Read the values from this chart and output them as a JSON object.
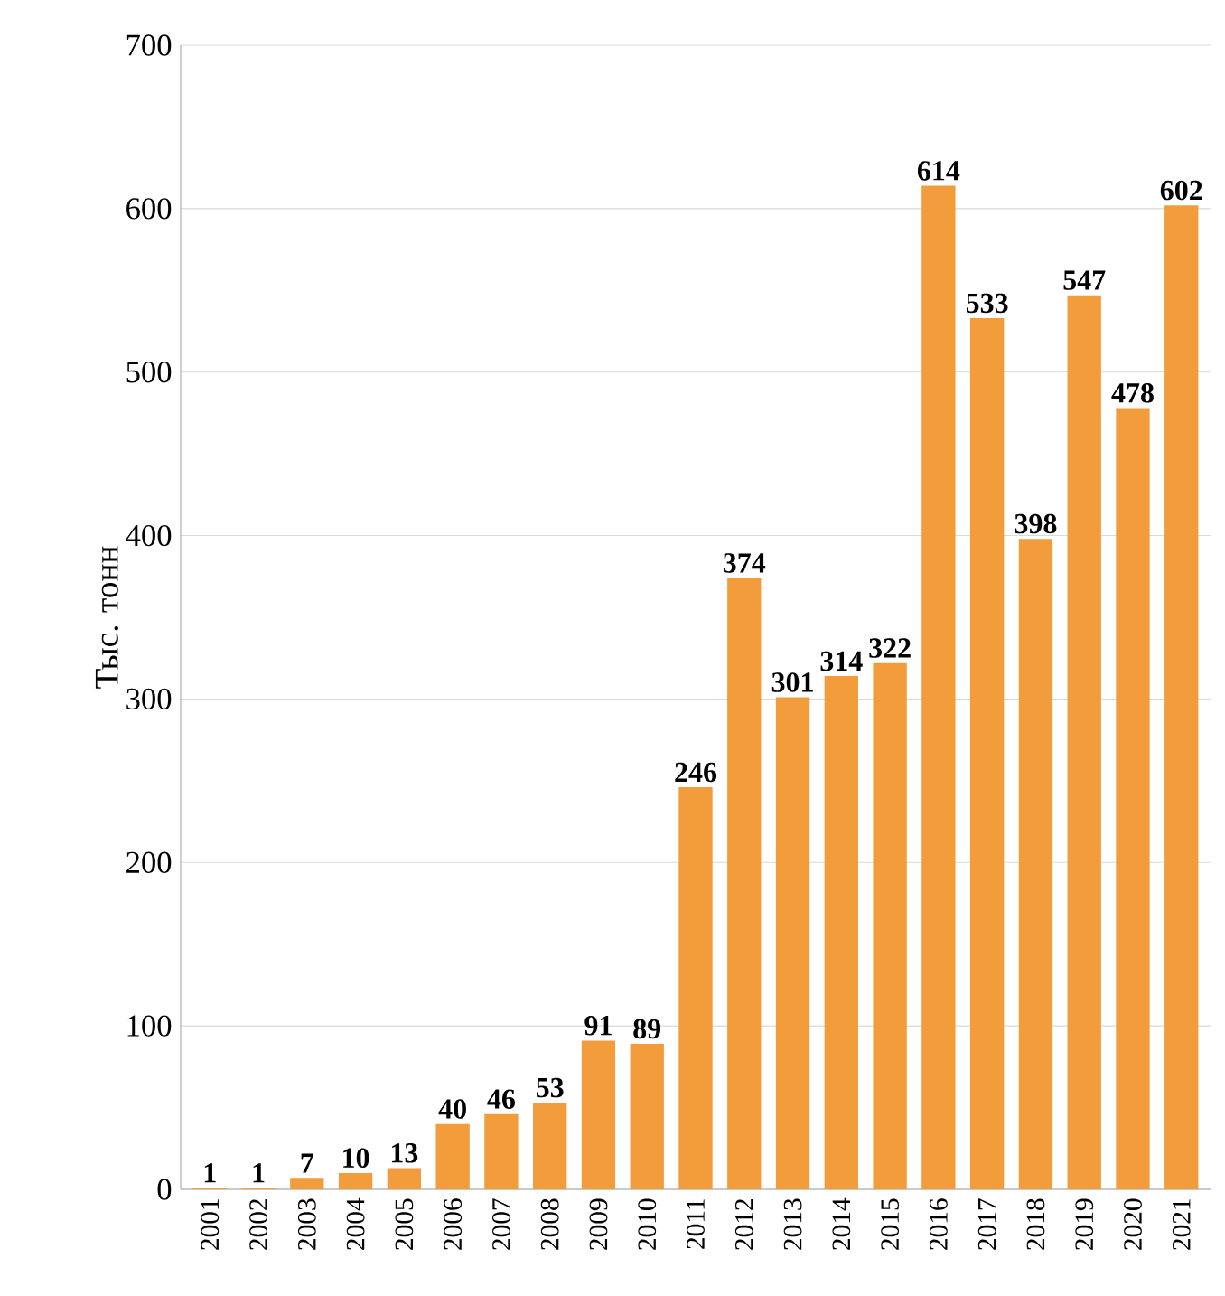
{
  "chart_data": {
    "type": "bar",
    "ylabel": "Тыс. тонн",
    "categories": [
      "2001",
      "2002",
      "2003",
      "2004",
      "2005",
      "2006",
      "2007",
      "2008",
      "2009",
      "2010",
      "2011",
      "2012",
      "2013",
      "2014",
      "2015",
      "2016",
      "2017",
      "2018",
      "2019",
      "2020",
      "2021"
    ],
    "values": [
      1,
      1,
      7,
      10,
      13,
      40,
      46,
      53,
      91,
      89,
      246,
      374,
      301,
      314,
      322,
      614,
      533,
      398,
      547,
      478,
      602
    ],
    "color": "#f39c3c",
    "ylim": [
      0,
      700
    ],
    "yticks": [
      0,
      100,
      200,
      300,
      400,
      500,
      600,
      700
    ],
    "grid": "y",
    "data_labels": true
  }
}
